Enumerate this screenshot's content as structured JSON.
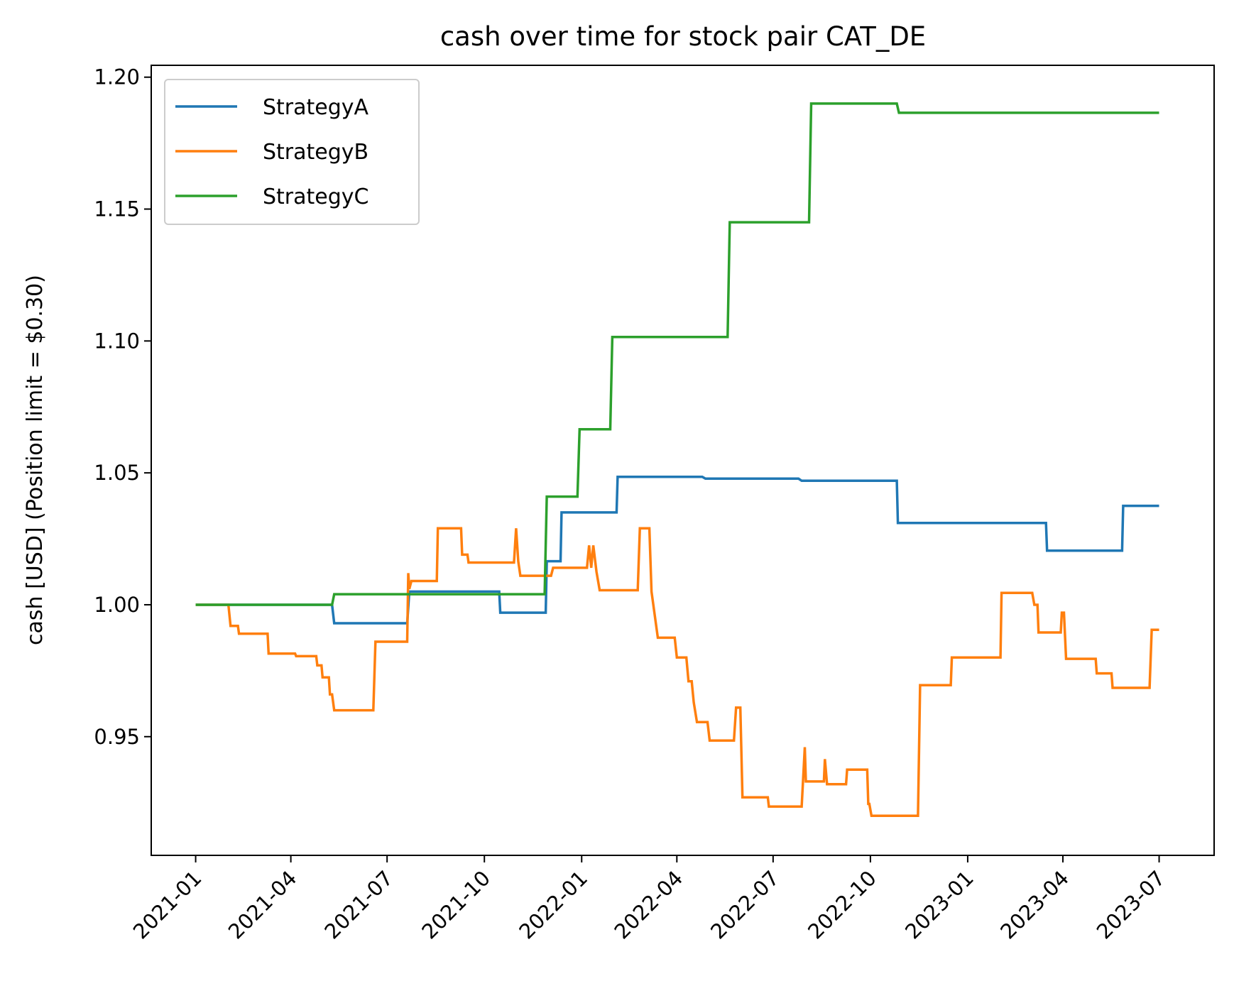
{
  "chart_data": {
    "type": "line",
    "title": "cash over time for stock pair CAT_DE",
    "xlabel": "",
    "ylabel": "cash [USD] (Position limit = $0.30)",
    "x_ticks": [
      "2021-01",
      "2021-04",
      "2021-07",
      "2021-10",
      "2022-01",
      "2022-04",
      "2022-07",
      "2022-10",
      "2023-01",
      "2023-04",
      "2023-07"
    ],
    "y_ticks": [
      "0.95",
      "1.00",
      "1.05",
      "1.10",
      "1.15",
      "1.20"
    ],
    "xlim": [
      "2020-11-20",
      "2023-08-22"
    ],
    "ylim": [
      0.905,
      1.2045
    ],
    "grid": false,
    "legend_position": "upper left",
    "series": [
      {
        "name": "StrategyA",
        "color": "#1f77b4",
        "points": [
          [
            "2021-01-01",
            1.0
          ],
          [
            "2021-05-10",
            1.0
          ],
          [
            "2021-05-12",
            0.993
          ],
          [
            "2021-07-20",
            0.993
          ],
          [
            "2021-07-22",
            1.005
          ],
          [
            "2021-10-15",
            1.005
          ],
          [
            "2021-10-16",
            0.997
          ],
          [
            "2021-11-28",
            0.997
          ],
          [
            "2021-11-29",
            1.0165
          ],
          [
            "2021-12-12",
            1.0165
          ],
          [
            "2021-12-13",
            1.035
          ],
          [
            "2022-02-03",
            1.035
          ],
          [
            "2022-02-04",
            1.0485
          ],
          [
            "2022-04-25",
            1.0485
          ],
          [
            "2022-04-28",
            1.0478
          ],
          [
            "2022-07-25",
            1.0478
          ],
          [
            "2022-07-28",
            1.047
          ],
          [
            "2022-10-26",
            1.047
          ],
          [
            "2022-10-27",
            1.031
          ],
          [
            "2023-03-16",
            1.031
          ],
          [
            "2023-03-17",
            1.0205
          ],
          [
            "2023-05-27",
            1.0205
          ],
          [
            "2023-05-28",
            1.0375
          ],
          [
            "2023-07-01",
            1.0375
          ]
        ]
      },
      {
        "name": "StrategyB",
        "color": "#ff7f0e",
        "points": [
          [
            "2021-01-01",
            1.0
          ],
          [
            "2021-02-01",
            1.0
          ],
          [
            "2021-02-03",
            0.992
          ],
          [
            "2021-02-10",
            0.992
          ],
          [
            "2021-02-11",
            0.989
          ],
          [
            "2021-03-10",
            0.989
          ],
          [
            "2021-03-11",
            0.9815
          ],
          [
            "2021-04-05",
            0.9815
          ],
          [
            "2021-04-06",
            0.9805
          ],
          [
            "2021-04-25",
            0.9805
          ],
          [
            "2021-04-26",
            0.977
          ],
          [
            "2021-04-30",
            0.977
          ],
          [
            "2021-05-01",
            0.9725
          ],
          [
            "2021-05-07",
            0.9725
          ],
          [
            "2021-05-08",
            0.966
          ],
          [
            "2021-05-10",
            0.966
          ],
          [
            "2021-05-12",
            0.96
          ],
          [
            "2021-06-18",
            0.96
          ],
          [
            "2021-06-20",
            0.986
          ],
          [
            "2021-07-20",
            0.986
          ],
          [
            "2021-07-21",
            1.012
          ],
          [
            "2021-07-22",
            1.006
          ],
          [
            "2021-07-24",
            1.009
          ],
          [
            "2021-08-17",
            1.009
          ],
          [
            "2021-08-18",
            1.029
          ],
          [
            "2021-09-09",
            1.029
          ],
          [
            "2021-09-10",
            1.019
          ],
          [
            "2021-09-15",
            1.019
          ],
          [
            "2021-09-16",
            1.016
          ],
          [
            "2021-10-29",
            1.016
          ],
          [
            "2021-10-31",
            1.029
          ],
          [
            "2021-11-02",
            1.0165
          ],
          [
            "2021-11-04",
            1.011
          ],
          [
            "2021-12-03",
            1.011
          ],
          [
            "2021-12-05",
            1.014
          ],
          [
            "2022-01-06",
            1.014
          ],
          [
            "2022-01-08",
            1.0225
          ],
          [
            "2022-01-10",
            1.014
          ],
          [
            "2022-01-12",
            1.0225
          ],
          [
            "2022-01-15",
            1.0125
          ],
          [
            "2022-01-18",
            1.0055
          ],
          [
            "2022-02-23",
            1.0055
          ],
          [
            "2022-02-25",
            1.029
          ],
          [
            "2022-03-06",
            1.029
          ],
          [
            "2022-03-08",
            1.005
          ],
          [
            "2022-03-14",
            0.9875
          ],
          [
            "2022-03-30",
            0.9875
          ],
          [
            "2022-04-01",
            0.98
          ],
          [
            "2022-04-10",
            0.98
          ],
          [
            "2022-04-12",
            0.971
          ],
          [
            "2022-04-15",
            0.971
          ],
          [
            "2022-04-17",
            0.963
          ],
          [
            "2022-04-20",
            0.9555
          ],
          [
            "2022-04-30",
            0.9555
          ],
          [
            "2022-05-02",
            0.9485
          ],
          [
            "2022-05-25",
            0.9485
          ],
          [
            "2022-05-27",
            0.961
          ],
          [
            "2022-05-31",
            0.961
          ],
          [
            "2022-06-02",
            0.927
          ],
          [
            "2022-06-26",
            0.927
          ],
          [
            "2022-06-27",
            0.9235
          ],
          [
            "2022-07-28",
            0.9235
          ],
          [
            "2022-07-31",
            0.946
          ],
          [
            "2022-08-01",
            0.933
          ],
          [
            "2022-08-18",
            0.933
          ],
          [
            "2022-08-19",
            0.9415
          ],
          [
            "2022-08-21",
            0.932
          ],
          [
            "2022-09-08",
            0.932
          ],
          [
            "2022-09-09",
            0.9375
          ],
          [
            "2022-09-28",
            0.9375
          ],
          [
            "2022-09-29",
            0.9245
          ],
          [
            "2022-09-30",
            0.9245
          ],
          [
            "2022-10-02",
            0.92
          ],
          [
            "2022-11-15",
            0.92
          ],
          [
            "2022-11-17",
            0.9695
          ],
          [
            "2022-12-16",
            0.9695
          ],
          [
            "2022-12-17",
            0.98
          ],
          [
            "2023-02-01",
            0.98
          ],
          [
            "2023-02-02",
            1.0045
          ],
          [
            "2023-03-03",
            1.0045
          ],
          [
            "2023-03-05",
            1.0
          ],
          [
            "2023-03-08",
            1.0
          ],
          [
            "2023-03-09",
            0.9895
          ],
          [
            "2023-03-30",
            0.9895
          ],
          [
            "2023-03-31",
            0.997
          ],
          [
            "2023-04-02",
            0.997
          ],
          [
            "2023-04-04",
            0.9795
          ],
          [
            "2023-05-02",
            0.9795
          ],
          [
            "2023-05-03",
            0.974
          ],
          [
            "2023-05-17",
            0.974
          ],
          [
            "2023-05-18",
            0.9685
          ],
          [
            "2023-06-22",
            0.9685
          ],
          [
            "2023-06-24",
            0.9905
          ],
          [
            "2023-07-01",
            0.9905
          ]
        ]
      },
      {
        "name": "StrategyC",
        "color": "#2ca02c",
        "points": [
          [
            "2021-01-01",
            1.0
          ],
          [
            "2021-05-10",
            1.0
          ],
          [
            "2021-05-12",
            1.004
          ],
          [
            "2021-11-27",
            1.004
          ],
          [
            "2021-11-29",
            1.041
          ],
          [
            "2021-12-28",
            1.041
          ],
          [
            "2021-12-30",
            1.0665
          ],
          [
            "2022-01-28",
            1.0665
          ],
          [
            "2022-01-30",
            1.1015
          ],
          [
            "2022-05-19",
            1.1015
          ],
          [
            "2022-05-21",
            1.145
          ],
          [
            "2022-08-04",
            1.145
          ],
          [
            "2022-08-06",
            1.19
          ],
          [
            "2022-10-26",
            1.19
          ],
          [
            "2022-10-28",
            1.1865
          ],
          [
            "2023-07-01",
            1.1865
          ]
        ]
      }
    ]
  }
}
